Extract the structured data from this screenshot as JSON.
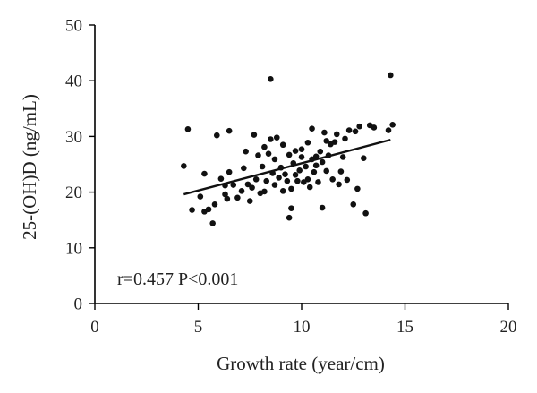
{
  "chart_data": {
    "type": "scatter",
    "xlabel": "Growth rate (year/cm)",
    "ylabel": "25-(OH)D (ng/mL)",
    "xlim": [
      0,
      20
    ],
    "ylim": [
      0,
      50
    ],
    "xticks": [
      0,
      5,
      10,
      15,
      20
    ],
    "yticks": [
      0,
      10,
      20,
      30,
      40,
      50
    ],
    "xtick_labels": [
      "0",
      "5",
      "10",
      "15",
      "20"
    ],
    "ytick_labels": [
      "0",
      "10",
      "20",
      "30",
      "40",
      "50"
    ],
    "grid": false,
    "annotation": "r=0.457 P<0.001",
    "trend_line": {
      "x": [
        4.3,
        14.3
      ],
      "y": [
        19.6,
        29.4
      ]
    },
    "points": [
      [
        4.3,
        24.7
      ],
      [
        4.5,
        31.3
      ],
      [
        4.7,
        16.8
      ],
      [
        5.1,
        19.2
      ],
      [
        5.3,
        16.5
      ],
      [
        5.3,
        23.3
      ],
      [
        5.5,
        16.9
      ],
      [
        5.7,
        14.4
      ],
      [
        5.8,
        17.8
      ],
      [
        5.9,
        30.2
      ],
      [
        6.1,
        22.4
      ],
      [
        6.3,
        19.6
      ],
      [
        6.3,
        21.2
      ],
      [
        6.4,
        18.8
      ],
      [
        6.5,
        23.6
      ],
      [
        6.5,
        31.0
      ],
      [
        6.7,
        21.3
      ],
      [
        6.9,
        19.0
      ],
      [
        7.1,
        20.2
      ],
      [
        7.2,
        24.3
      ],
      [
        7.3,
        27.3
      ],
      [
        7.4,
        21.4
      ],
      [
        7.5,
        18.4
      ],
      [
        7.6,
        20.8
      ],
      [
        7.7,
        30.3
      ],
      [
        7.8,
        22.3
      ],
      [
        7.9,
        26.6
      ],
      [
        8.0,
        19.8
      ],
      [
        8.1,
        24.6
      ],
      [
        8.2,
        20.1
      ],
      [
        8.2,
        28.1
      ],
      [
        8.3,
        22.0
      ],
      [
        8.4,
        26.9
      ],
      [
        8.5,
        40.3
      ],
      [
        8.5,
        29.5
      ],
      [
        8.6,
        23.4
      ],
      [
        8.7,
        21.3
      ],
      [
        8.7,
        25.9
      ],
      [
        8.8,
        29.8
      ],
      [
        8.9,
        22.6
      ],
      [
        9.0,
        24.4
      ],
      [
        9.1,
        20.2
      ],
      [
        9.1,
        28.5
      ],
      [
        9.2,
        23.2
      ],
      [
        9.3,
        22.0
      ],
      [
        9.4,
        15.4
      ],
      [
        9.4,
        26.7
      ],
      [
        9.5,
        20.6
      ],
      [
        9.5,
        17.1
      ],
      [
        9.6,
        25.2
      ],
      [
        9.7,
        23.1
      ],
      [
        9.7,
        27.4
      ],
      [
        9.8,
        22.0
      ],
      [
        9.9,
        23.9
      ],
      [
        10.0,
        26.3
      ],
      [
        10.0,
        27.7
      ],
      [
        10.1,
        21.8
      ],
      [
        10.2,
        24.6
      ],
      [
        10.3,
        22.3
      ],
      [
        10.3,
        28.9
      ],
      [
        10.4,
        20.9
      ],
      [
        10.5,
        25.9
      ],
      [
        10.5,
        31.4
      ],
      [
        10.6,
        23.6
      ],
      [
        10.7,
        26.4
      ],
      [
        10.7,
        24.8
      ],
      [
        10.8,
        21.8
      ],
      [
        10.9,
        27.3
      ],
      [
        11.0,
        25.4
      ],
      [
        11.0,
        17.2
      ],
      [
        11.1,
        30.7
      ],
      [
        11.2,
        23.8
      ],
      [
        11.2,
        29.2
      ],
      [
        11.3,
        26.6
      ],
      [
        11.4,
        28.6
      ],
      [
        11.5,
        22.3
      ],
      [
        11.6,
        29.0
      ],
      [
        11.7,
        30.4
      ],
      [
        11.8,
        21.4
      ],
      [
        11.9,
        23.7
      ],
      [
        12.0,
        26.3
      ],
      [
        12.1,
        29.6
      ],
      [
        12.2,
        22.2
      ],
      [
        12.3,
        31.1
      ],
      [
        12.5,
        17.8
      ],
      [
        12.6,
        30.9
      ],
      [
        12.7,
        20.6
      ],
      [
        12.8,
        31.8
      ],
      [
        13.0,
        26.1
      ],
      [
        13.1,
        16.2
      ],
      [
        13.3,
        32.0
      ],
      [
        13.5,
        31.6
      ],
      [
        14.2,
        31.1
      ],
      [
        14.3,
        41.0
      ],
      [
        14.4,
        32.1
      ]
    ]
  }
}
